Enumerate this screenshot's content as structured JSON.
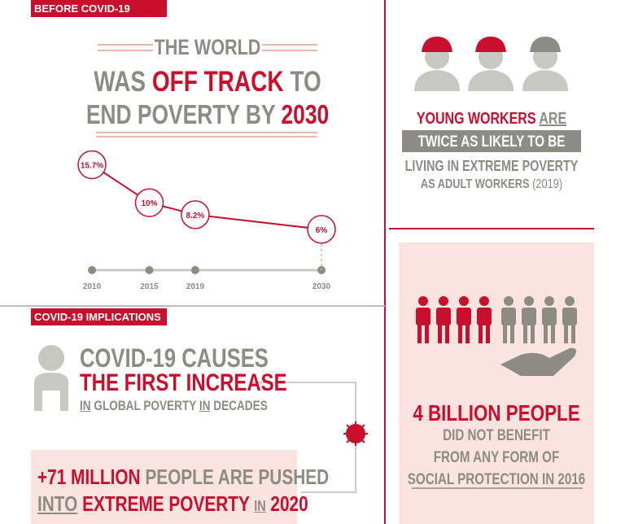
{
  "before": {
    "label": "BEFORE COVID-19",
    "headline": {
      "line1": "THE WORLD",
      "line2a": "WAS",
      "line2b": "OFF TRACK",
      "line2c": "TO",
      "line3a": "END POVERTY BY",
      "line3b": "2030"
    }
  },
  "chart_data": {
    "type": "line",
    "x": [
      2010,
      2015,
      2019,
      2030
    ],
    "values": [
      15.7,
      10,
      8.2,
      6
    ],
    "value_labels": [
      "15.7%",
      "10%",
      "8.2%",
      "6%"
    ],
    "xlim": [
      2010,
      2030
    ],
    "xticks": [
      2010,
      2015,
      2019,
      2030
    ],
    "ylim": [
      5,
      16
    ],
    "color": "#c8102e"
  },
  "young": {
    "a": "YOUNG WORKERS",
    "b": "ARE",
    "c": "TWICE AS LIKELY TO BE",
    "d": "LIVING IN EXTREME POVERTY",
    "e": "AS ADULT WORKERS",
    "f": "(2019)"
  },
  "covid": {
    "label": "COVID-19 IMPLICATIONS",
    "line1": "COVID-19 CAUSES",
    "line2": "THE FIRST INCREASE",
    "line3a": "IN",
    "line3b": "GLOBAL POVERTY",
    "line3c": "IN",
    "line3d": "DECADES"
  },
  "pushed": {
    "a": "+71 MILLION",
    "b": "PEOPLE ARE PUSHED",
    "c": "INTO",
    "d": "EXTREME POVERTY",
    "e": "IN",
    "f": "2020"
  },
  "protection": {
    "a": "4 BILLION PEOPLE",
    "b": "DID NOT BENEFIT",
    "c": "FROM ANY FORM OF",
    "d": "SOCIAL PROTECTION IN 2016"
  }
}
